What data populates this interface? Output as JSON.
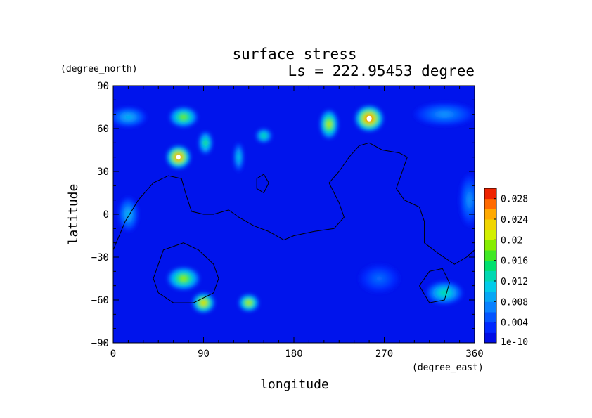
{
  "chart_data": {
    "type": "heatmap",
    "title": "surface stress",
    "subtitle": "Ls = 222.95453 degree",
    "xlabel": "longitude",
    "ylabel": "latitude",
    "x_unit": "(degree_east)",
    "y_unit": "(degree_north)",
    "xlim": [
      0,
      360
    ],
    "ylim": [
      -90,
      90
    ],
    "xticks": [
      0,
      90,
      180,
      270,
      360
    ],
    "yticks": [
      -90,
      -60,
      -30,
      0,
      30,
      60,
      90
    ],
    "colorbar": {
      "min": 1e-10,
      "max": 0.03,
      "min_label": "1e-10",
      "tick_labels": [
        "0.004",
        "0.008",
        "0.012",
        "0.016",
        "0.02",
        "0.024",
        "0.028"
      ],
      "tick_values": [
        0.004,
        0.008,
        0.012,
        0.016,
        0.02,
        0.024,
        0.028
      ]
    },
    "background_value": 0.0015,
    "features": [
      {
        "lon": 15,
        "lat": 68,
        "value": 0.01,
        "w": 18,
        "h": 7
      },
      {
        "lon": 70,
        "lat": 68,
        "value": 0.019,
        "w": 14,
        "h": 7
      },
      {
        "lon": 65,
        "lat": 40,
        "value": 0.029,
        "w": 12,
        "h": 8
      },
      {
        "lon": 92,
        "lat": 50,
        "value": 0.016,
        "w": 7,
        "h": 8
      },
      {
        "lon": 125,
        "lat": 40,
        "value": 0.012,
        "w": 5,
        "h": 10
      },
      {
        "lon": 150,
        "lat": 55,
        "value": 0.015,
        "w": 8,
        "h": 5
      },
      {
        "lon": 215,
        "lat": 63,
        "value": 0.022,
        "w": 9,
        "h": 10
      },
      {
        "lon": 255,
        "lat": 67,
        "value": 0.03,
        "w": 14,
        "h": 9
      },
      {
        "lon": 330,
        "lat": 70,
        "value": 0.008,
        "w": 30,
        "h": 8
      },
      {
        "lon": 355,
        "lat": 10,
        "value": 0.008,
        "w": 10,
        "h": 18
      },
      {
        "lon": 15,
        "lat": 0,
        "value": 0.01,
        "w": 10,
        "h": 12
      },
      {
        "lon": 70,
        "lat": -45,
        "value": 0.02,
        "w": 16,
        "h": 8
      },
      {
        "lon": 90,
        "lat": -62,
        "value": 0.024,
        "w": 11,
        "h": 7
      },
      {
        "lon": 135,
        "lat": -62,
        "value": 0.022,
        "w": 10,
        "h": 6
      },
      {
        "lon": 330,
        "lat": -55,
        "value": 0.014,
        "w": 18,
        "h": 8
      },
      {
        "lon": 265,
        "lat": -45,
        "value": 0.006,
        "w": 20,
        "h": 10
      }
    ],
    "contours": [
      [
        [
          0,
          -25
        ],
        [
          12,
          -5
        ],
        [
          25,
          10
        ],
        [
          40,
          22
        ],
        [
          55,
          27
        ],
        [
          68,
          25
        ],
        [
          72,
          15
        ],
        [
          78,
          2
        ],
        [
          90,
          0
        ],
        [
          100,
          0
        ],
        [
          110,
          2
        ],
        [
          115,
          3
        ],
        [
          125,
          -2
        ],
        [
          140,
          -8
        ],
        [
          155,
          -12
        ],
        [
          170,
          -18
        ],
        [
          180,
          -15
        ],
        [
          200,
          -12
        ],
        [
          220,
          -10
        ],
        [
          230,
          -2
        ],
        [
          225,
          8
        ],
        [
          215,
          22
        ],
        [
          225,
          30
        ],
        [
          235,
          40
        ],
        [
          245,
          48
        ],
        [
          255,
          50
        ],
        [
          268,
          45
        ],
        [
          285,
          43
        ],
        [
          293,
          40
        ],
        [
          288,
          30
        ],
        [
          282,
          18
        ],
        [
          290,
          10
        ],
        [
          305,
          5
        ],
        [
          310,
          -5
        ],
        [
          310,
          -20
        ],
        [
          325,
          -28
        ],
        [
          340,
          -35
        ],
        [
          352,
          -30
        ],
        [
          360,
          -25
        ]
      ],
      [
        [
          40,
          -45
        ],
        [
          50,
          -25
        ],
        [
          70,
          -20
        ],
        [
          85,
          -25
        ],
        [
          100,
          -35
        ],
        [
          105,
          -45
        ],
        [
          100,
          -55
        ],
        [
          80,
          -62
        ],
        [
          60,
          -62
        ],
        [
          45,
          -55
        ],
        [
          40,
          -45
        ]
      ],
      [
        [
          305,
          -50
        ],
        [
          315,
          -40
        ],
        [
          328,
          -38
        ],
        [
          335,
          -48
        ],
        [
          330,
          -60
        ],
        [
          315,
          -62
        ],
        [
          305,
          -50
        ]
      ],
      [
        [
          143,
          25
        ],
        [
          150,
          28
        ],
        [
          155,
          22
        ],
        [
          150,
          15
        ],
        [
          143,
          18
        ],
        [
          143,
          25
        ]
      ]
    ]
  }
}
